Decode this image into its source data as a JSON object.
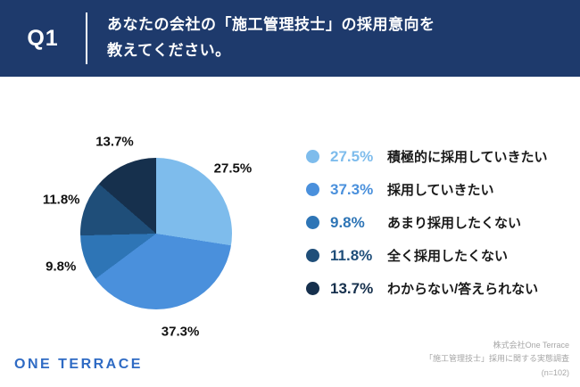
{
  "header": {
    "question_number": "Q1",
    "question_line1": "あなたの会社の「施工管理技士」の採用意向を",
    "question_line2": "教えてください。"
  },
  "chart_data": {
    "type": "pie",
    "title": "あなたの会社の「施工管理技士」の採用意向を教えてください。",
    "unit": "%",
    "legend_position": "right",
    "start_angle": "top",
    "direction": "clockwise",
    "segments": [
      {
        "label": "積極的に採用していきたい",
        "value": 27.5,
        "display": "27.5%",
        "color": "#7EBCEC"
      },
      {
        "label": "採用していきたい",
        "value": 37.3,
        "display": "37.3%",
        "color": "#4A90DC"
      },
      {
        "label": "あまり採用したくない",
        "value": 9.8,
        "display": "9.8%",
        "color": "#2E75B6"
      },
      {
        "label": "全く採用したくない",
        "value": 11.8,
        "display": "11.8%",
        "color": "#1F4E79"
      },
      {
        "label": "わからない/答えられない",
        "value": 13.7,
        "display": "13.7%",
        "color": "#16304D"
      }
    ]
  },
  "footer": {
    "logo": "ONE TERRACE",
    "credits": [
      "株式会社One Terrace",
      "「施工管理技士」採用に関する実態調査",
      "(n=102)"
    ]
  },
  "colors": {
    "header_bg": "#1E3A6C",
    "logo_blue": "#2F6BC4"
  }
}
